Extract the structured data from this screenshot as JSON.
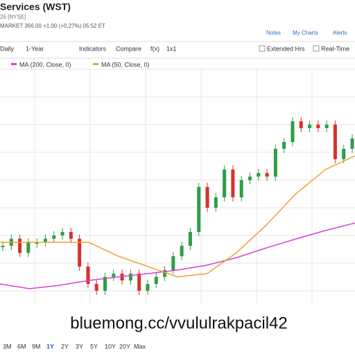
{
  "header": {
    "title": "Services (WST)",
    "exchange": "26 [NYSE]",
    "quote": "MARKET 366.00 +1.00 (+0.27%) 05:52 ET"
  },
  "links": [
    "Notes",
    "My Charts",
    "Alerts"
  ],
  "toolbar": [
    "Daily",
    "1-Year",
    "Indicators",
    "Compare",
    "f(x)",
    "1x1"
  ],
  "toggles": [
    "Extended Hrs",
    "Real-Time"
  ],
  "chart_data": {
    "type": "candlestick",
    "ylim": [
      0,
      100
    ],
    "up_color": "#2e9e48",
    "down_color": "#d9302c",
    "values": [
      25,
      28,
      22,
      26.5,
      26.5,
      28,
      29.4,
      30.9,
      28,
      16.2,
      8.8,
      5.9,
      11.8,
      13.2,
      10.3,
      13.2,
      5.9,
      8.8,
      11.8,
      14.7,
      20.6,
      25,
      30.9,
      50,
      41.2,
      45.6,
      57.4,
      45.6,
      52.9,
      54.4,
      55.9,
      54.4,
      66.2,
      69.1,
      77.9,
      75,
      76.5,
      75,
      76.5,
      61.8,
      66.2,
      70.6
    ],
    "overlays": [
      {
        "name": "MA (200, Close, 0)",
        "color": "#d63fd0",
        "values": [
          8.8,
          6.8,
          8.2,
          10.3,
          11.8,
          13.2,
          14.7,
          16.8,
          20,
          24.1,
          27.9,
          31.5,
          34.7
        ]
      },
      {
        "name": "MA (50, Close, 0)",
        "color": "#f0a030",
        "values": [
          26.5,
          26.5,
          26.5,
          26.5,
          20.6,
          16.2,
          11.8,
          13.2,
          22.1,
          33.8,
          47.1,
          57.4,
          63.2
        ]
      }
    ]
  },
  "watermark": "bluemong.cc/vvululrakpacil42",
  "ranges": [
    "3M",
    "6M",
    "9M",
    "1Y",
    "2Y",
    "3Y",
    "5Y",
    "10Y",
    "20Y",
    "Max"
  ]
}
